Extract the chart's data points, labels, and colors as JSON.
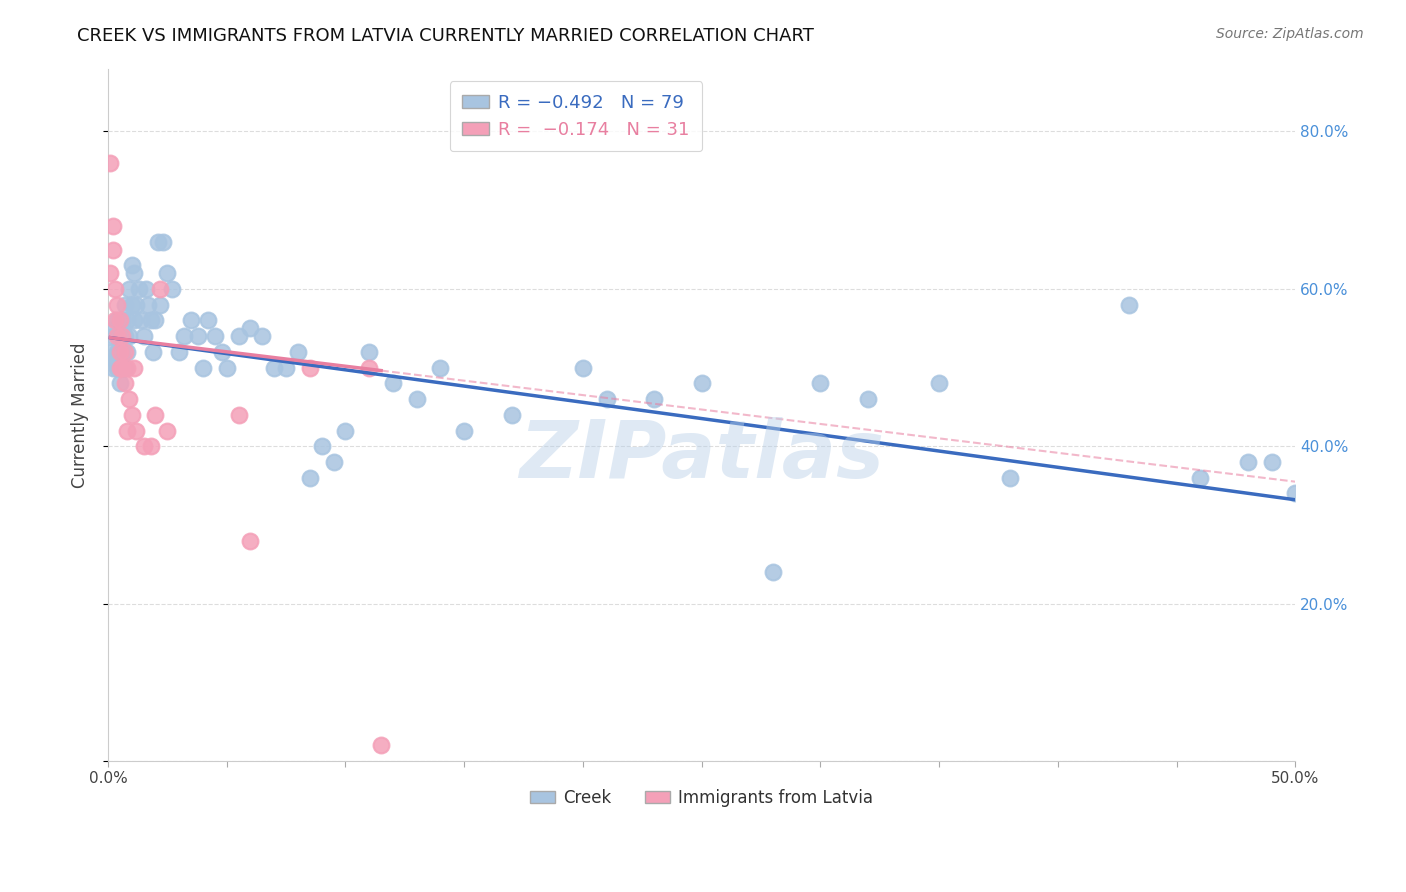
{
  "title": "CREEK VS IMMIGRANTS FROM LATVIA CURRENTLY MARRIED CORRELATION CHART",
  "source": "Source: ZipAtlas.com",
  "ylabel": "Currently Married",
  "xlim": [
    0.0,
    0.5
  ],
  "ylim": [
    0.0,
    0.88
  ],
  "yticks": [
    0.0,
    0.2,
    0.4,
    0.6,
    0.8
  ],
  "ytick_labels_right": [
    "",
    "20.0%",
    "40.0%",
    "60.0%",
    "80.0%"
  ],
  "xticks": [
    0.0,
    0.05,
    0.1,
    0.15,
    0.2,
    0.25,
    0.3,
    0.35,
    0.4,
    0.45,
    0.5
  ],
  "xtick_labels": [
    "0.0%",
    "",
    "",
    "",
    "",
    "",
    "",
    "",
    "",
    "",
    "50.0%"
  ],
  "creek_R": -0.492,
  "creek_N": 79,
  "latvia_R": -0.174,
  "latvia_N": 31,
  "creek_color": "#a8c4e0",
  "latvia_color": "#f4a0b8",
  "creek_line_color": "#3a6bbf",
  "latvia_line_color": "#e87fa0",
  "creek_x": [
    0.001,
    0.002,
    0.002,
    0.003,
    0.003,
    0.004,
    0.004,
    0.004,
    0.005,
    0.005,
    0.005,
    0.005,
    0.006,
    0.006,
    0.006,
    0.007,
    0.007,
    0.007,
    0.008,
    0.008,
    0.009,
    0.009,
    0.01,
    0.01,
    0.011,
    0.011,
    0.012,
    0.013,
    0.014,
    0.015,
    0.016,
    0.017,
    0.018,
    0.019,
    0.02,
    0.021,
    0.022,
    0.023,
    0.025,
    0.027,
    0.03,
    0.032,
    0.035,
    0.038,
    0.04,
    0.042,
    0.045,
    0.048,
    0.05,
    0.055,
    0.06,
    0.065,
    0.07,
    0.075,
    0.08,
    0.085,
    0.09,
    0.095,
    0.1,
    0.11,
    0.12,
    0.13,
    0.14,
    0.15,
    0.17,
    0.2,
    0.21,
    0.23,
    0.25,
    0.28,
    0.3,
    0.32,
    0.35,
    0.38,
    0.43,
    0.46,
    0.48,
    0.49,
    0.5
  ],
  "creek_y": [
    0.52,
    0.5,
    0.54,
    0.51,
    0.55,
    0.5,
    0.52,
    0.56,
    0.5,
    0.52,
    0.54,
    0.48,
    0.5,
    0.52,
    0.56,
    0.5,
    0.54,
    0.58,
    0.52,
    0.56,
    0.6,
    0.54,
    0.63,
    0.58,
    0.56,
    0.62,
    0.58,
    0.6,
    0.56,
    0.54,
    0.6,
    0.58,
    0.56,
    0.52,
    0.56,
    0.66,
    0.58,
    0.66,
    0.62,
    0.6,
    0.52,
    0.54,
    0.56,
    0.54,
    0.5,
    0.56,
    0.54,
    0.52,
    0.5,
    0.54,
    0.55,
    0.54,
    0.5,
    0.5,
    0.52,
    0.36,
    0.4,
    0.38,
    0.42,
    0.52,
    0.48,
    0.46,
    0.5,
    0.42,
    0.44,
    0.5,
    0.46,
    0.46,
    0.48,
    0.24,
    0.48,
    0.46,
    0.48,
    0.36,
    0.58,
    0.36,
    0.38,
    0.38,
    0.34
  ],
  "latvia_x": [
    0.001,
    0.001,
    0.002,
    0.002,
    0.003,
    0.003,
    0.004,
    0.004,
    0.005,
    0.005,
    0.005,
    0.006,
    0.006,
    0.007,
    0.007,
    0.008,
    0.008,
    0.009,
    0.01,
    0.011,
    0.012,
    0.015,
    0.018,
    0.02,
    0.022,
    0.025,
    0.055,
    0.06,
    0.085,
    0.11,
    0.115
  ],
  "latvia_y": [
    0.76,
    0.62,
    0.68,
    0.65,
    0.6,
    0.56,
    0.58,
    0.54,
    0.52,
    0.56,
    0.5,
    0.54,
    0.5,
    0.52,
    0.48,
    0.5,
    0.42,
    0.46,
    0.44,
    0.5,
    0.42,
    0.4,
    0.4,
    0.44,
    0.6,
    0.42,
    0.44,
    0.28,
    0.5,
    0.5,
    0.02
  ],
  "creek_line_x0": 0.001,
  "creek_line_x1": 0.5,
  "creek_line_y0": 0.538,
  "creek_line_y1": 0.332,
  "latvia_line_solid_x0": 0.001,
  "latvia_line_solid_x1": 0.115,
  "latvia_line_x0": 0.001,
  "latvia_line_x1": 0.5,
  "latvia_line_y0": 0.538,
  "latvia_line_y1": 0.355,
  "watermark": "ZIPatlas",
  "background_color": "#ffffff",
  "grid_color": "#dddddd"
}
